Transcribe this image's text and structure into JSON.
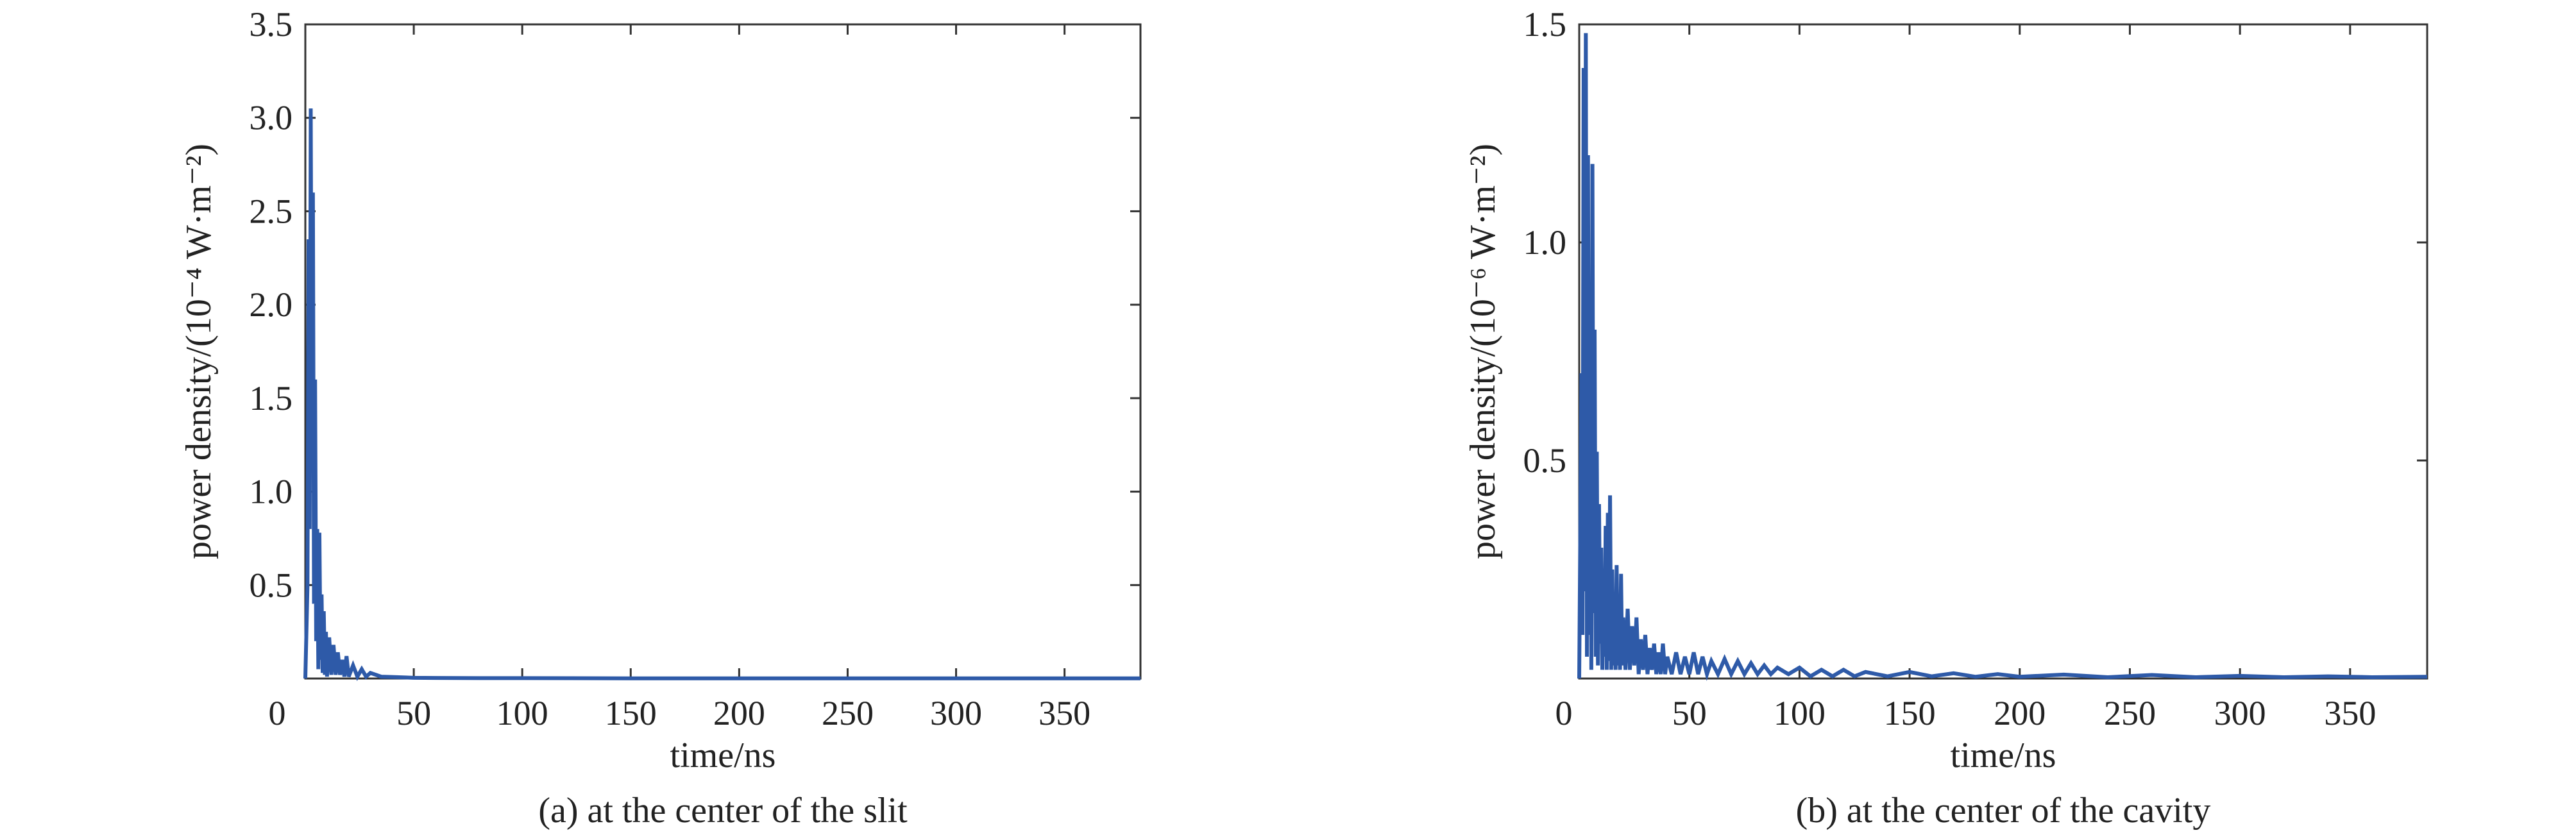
{
  "chart_data": [
    {
      "type": "line",
      "caption": "(a) at the center of the slit",
      "xlabel": "time/ns",
      "ylabel": "power density/(10⁻⁴ W·m⁻²)",
      "xlim": [
        0,
        385
      ],
      "ylim": [
        0,
        3.5
      ],
      "xticks": [
        0,
        50,
        100,
        150,
        200,
        250,
        300,
        350
      ],
      "xtick_labels": [
        "0",
        "50",
        "100",
        "150",
        "200",
        "250",
        "300",
        "350"
      ],
      "yticks": [
        0.5,
        1.0,
        1.5,
        2.0,
        2.5,
        3.0,
        3.5
      ],
      "ytick_labels": [
        "0.5",
        "1.0",
        "1.5",
        "2.0",
        "2.5",
        "3.0",
        "3.5"
      ],
      "color": "#2e5aa8",
      "series": [
        {
          "x": [
            0,
            1,
            1.5,
            2,
            2.5,
            3,
            3.5,
            4,
            4.5,
            5,
            5.5,
            6,
            6.5,
            7,
            7.5,
            8,
            8.5,
            9,
            9.5,
            10,
            11,
            12,
            13,
            14,
            15,
            16,
            17,
            18,
            19,
            20,
            22,
            24,
            26,
            28,
            30,
            35,
            40,
            50,
            60,
            80,
            100,
            150,
            200,
            250,
            300,
            350,
            385
          ],
          "y": [
            0,
            0.5,
            2.35,
            0.8,
            3.05,
            1.2,
            2.6,
            0.4,
            1.6,
            0.2,
            0.8,
            0.05,
            0.78,
            0.1,
            0.45,
            0.03,
            0.36,
            0.02,
            0.25,
            0.01,
            0.22,
            0.02,
            0.18,
            0.02,
            0.14,
            0.02,
            0.1,
            0.01,
            0.12,
            0.01,
            0.07,
            0.01,
            0.05,
            0.01,
            0.03,
            0.01,
            0.008,
            0.004,
            0.003,
            0.002,
            0.002,
            0.001,
            0.001,
            0.001,
            0.001,
            0.001,
            0.001
          ]
        }
      ]
    },
    {
      "type": "line",
      "caption": "(b) at the center of the cavity",
      "xlabel": "time/ns",
      "ylabel": "power density/(10⁻⁶ W·m⁻²)",
      "xlim": [
        0,
        385
      ],
      "ylim": [
        0,
        1.5
      ],
      "xticks": [
        0,
        50,
        100,
        150,
        200,
        250,
        300,
        350
      ],
      "xtick_labels": [
        "0",
        "50",
        "100",
        "150",
        "200",
        "250",
        "300",
        "350"
      ],
      "yticks": [
        0.5,
        1.0,
        1.5
      ],
      "ytick_labels": [
        "0.5",
        "1.0",
        "1.5"
      ],
      "color": "#2e5aa8",
      "series": [
        {
          "x": [
            0,
            1,
            1.5,
            2,
            2.5,
            3,
            3.5,
            4,
            4.5,
            5,
            5.5,
            6,
            6.5,
            7,
            7.5,
            8,
            8.5,
            9,
            9.5,
            10,
            10.5,
            11,
            11.5,
            12,
            12.5,
            13,
            13.5,
            14,
            14.5,
            15,
            15.5,
            16,
            16.5,
            17,
            17.5,
            18,
            18.5,
            19,
            19.5,
            20,
            21,
            22,
            23,
            24,
            25,
            26,
            27,
            28,
            29,
            30,
            31,
            32,
            33,
            34,
            35,
            36,
            37,
            38,
            39,
            40,
            42,
            44,
            46,
            48,
            50,
            52,
            54,
            56,
            58,
            60,
            63,
            66,
            69,
            72,
            75,
            78,
            81,
            84,
            87,
            90,
            95,
            100,
            105,
            110,
            115,
            120,
            125,
            130,
            140,
            150,
            160,
            170,
            180,
            190,
            200,
            220,
            240,
            260,
            280,
            300,
            320,
            340,
            360,
            385
          ],
          "y": [
            0,
            0.7,
            0.1,
            1.4,
            0.2,
            1.48,
            0.05,
            1.2,
            0.1,
            0.9,
            0.02,
            1.18,
            0.15,
            0.8,
            0.05,
            0.52,
            0.03,
            0.4,
            0.08,
            0.3,
            0.02,
            0.22,
            0.05,
            0.35,
            0.02,
            0.38,
            0.04,
            0.42,
            0.02,
            0.25,
            0.03,
            0.15,
            0.02,
            0.26,
            0.03,
            0.18,
            0.02,
            0.24,
            0.03,
            0.14,
            0.02,
            0.16,
            0.02,
            0.12,
            0.03,
            0.14,
            0.01,
            0.09,
            0.02,
            0.1,
            0.01,
            0.07,
            0.02,
            0.08,
            0.01,
            0.06,
            0.01,
            0.08,
            0.01,
            0.05,
            0.01,
            0.06,
            0.01,
            0.05,
            0.01,
            0.06,
            0.01,
            0.05,
            0.01,
            0.04,
            0.01,
            0.045,
            0.01,
            0.04,
            0.01,
            0.035,
            0.01,
            0.03,
            0.01,
            0.025,
            0.01,
            0.025,
            0.005,
            0.02,
            0.005,
            0.02,
            0.005,
            0.015,
            0.005,
            0.015,
            0.005,
            0.012,
            0.004,
            0.01,
            0.004,
            0.009,
            0.003,
            0.008,
            0.003,
            0.006,
            0.003,
            0.005,
            0.003,
            0.004
          ]
        }
      ]
    }
  ]
}
